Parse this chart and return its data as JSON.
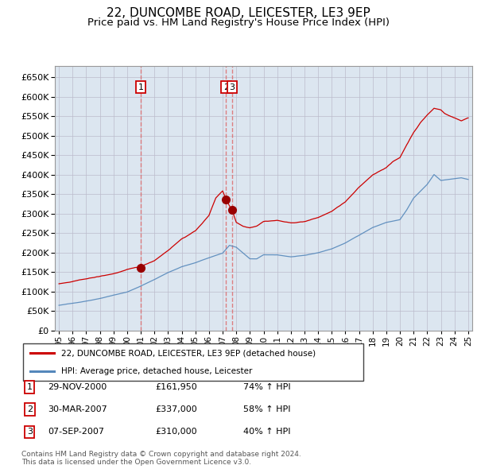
{
  "title": "22, DUNCOMBE ROAD, LEICESTER, LE3 9EP",
  "subtitle": "Price paid vs. HM Land Registry's House Price Index (HPI)",
  "title_fontsize": 11,
  "subtitle_fontsize": 9.5,
  "background_color": "#ffffff",
  "grid_color": "#bbbbcc",
  "plot_bg_color": "#dce6f0",
  "legend_label_red": "22, DUNCOMBE ROAD, LEICESTER, LE3 9EP (detached house)",
  "legend_label_blue": "HPI: Average price, detached house, Leicester",
  "footer_text": "Contains HM Land Registry data © Crown copyright and database right 2024.\nThis data is licensed under the Open Government Licence v3.0.",
  "transactions": [
    {
      "num": 1,
      "date": "29-NOV-2000",
      "price": "£161,950",
      "change": "74% ↑ HPI",
      "x_year": 2001.0
    },
    {
      "num": 2,
      "date": "30-MAR-2007",
      "price": "£337,000",
      "change": "58% ↑ HPI",
      "x_year": 2007.25
    },
    {
      "num": 3,
      "date": "07-SEP-2007",
      "price": "£310,000",
      "change": "40% ↑ HPI",
      "x_year": 2007.69
    }
  ],
  "ylim": [
    0,
    680000
  ],
  "yticks": [
    0,
    50000,
    100000,
    150000,
    200000,
    250000,
    300000,
    350000,
    400000,
    450000,
    500000,
    550000,
    600000,
    650000
  ],
  "xlim_start": 1994.7,
  "xlim_end": 2025.3,
  "xticks": [
    1995,
    1996,
    1997,
    1998,
    1999,
    2000,
    2001,
    2002,
    2003,
    2004,
    2005,
    2006,
    2007,
    2008,
    2009,
    2010,
    2011,
    2012,
    2013,
    2014,
    2015,
    2016,
    2017,
    2018,
    2019,
    2020,
    2021,
    2022,
    2023,
    2024,
    2025
  ],
  "red_color": "#cc0000",
  "blue_color": "#5588bb",
  "vline_color": "#dd6666",
  "marker_dot_color": "#990000"
}
